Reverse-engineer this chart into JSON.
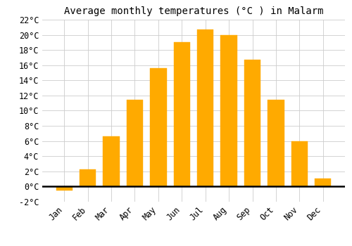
{
  "title": "Average monthly temperatures (°C ) in Malarm",
  "months": [
    "Jan",
    "Feb",
    "Mar",
    "Apr",
    "May",
    "Jun",
    "Jul",
    "Aug",
    "Sep",
    "Oct",
    "Nov",
    "Dec"
  ],
  "values": [
    -0.5,
    2.3,
    6.6,
    11.4,
    15.6,
    19.0,
    20.7,
    20.0,
    16.7,
    11.4,
    6.0,
    1.1
  ],
  "bar_color": "#FFAA00",
  "bar_edge_color": "#FFAA00",
  "ylim": [
    -2,
    22
  ],
  "yticks": [
    -2,
    0,
    2,
    4,
    6,
    8,
    10,
    12,
    14,
    16,
    18,
    20,
    22
  ],
  "grid_color": "#cccccc",
  "background_color": "#ffffff",
  "title_fontsize": 10,
  "tick_fontsize": 8.5,
  "font_family": "monospace",
  "bar_width": 0.7
}
